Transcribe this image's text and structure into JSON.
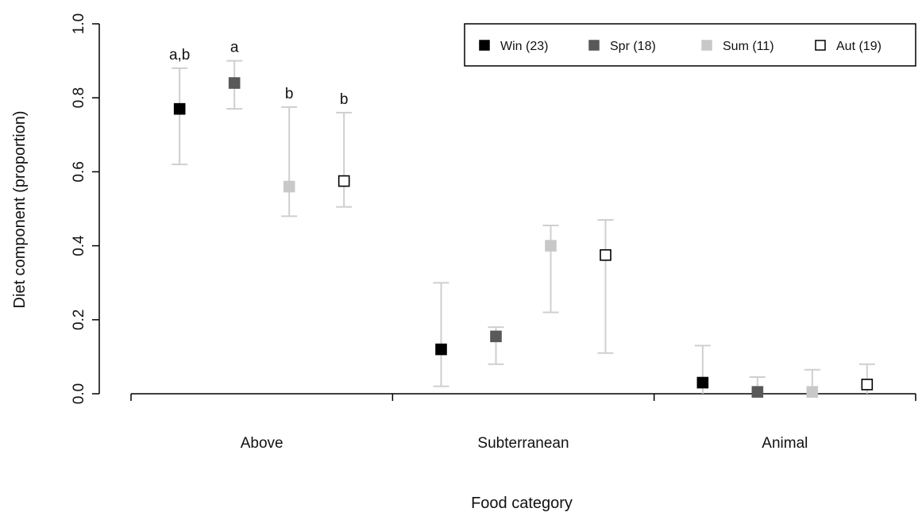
{
  "chart_data": {
    "type": "scatter",
    "title": "",
    "xlabel": "Food category",
    "ylabel": "Diet component (proportion)",
    "ylim": [
      0,
      1
    ],
    "yticks": [
      "0.0",
      "0.2",
      "0.4",
      "0.6",
      "0.8",
      "1.0"
    ],
    "categories": [
      "Above",
      "Subterranean",
      "Animal"
    ],
    "grid": false,
    "legend_position": "top-right",
    "series": [
      {
        "name": "Win (23)",
        "marker_fill": "#000000",
        "marker_stroke": "#000000",
        "values": [
          0.77,
          0.12,
          0.03
        ],
        "lower": [
          0.62,
          0.02,
          0.0
        ],
        "upper": [
          0.88,
          0.3,
          0.13
        ]
      },
      {
        "name": "Spr (18)",
        "marker_fill": "#595959",
        "marker_stroke": "#595959",
        "values": [
          0.84,
          0.155,
          0.005
        ],
        "lower": [
          0.77,
          0.08,
          0.0
        ],
        "upper": [
          0.9,
          0.18,
          0.045
        ]
      },
      {
        "name": "Sum (11)",
        "marker_fill": "#c8c8c8",
        "marker_stroke": "#c8c8c8",
        "values": [
          0.56,
          0.4,
          0.005
        ],
        "lower": [
          0.48,
          0.22,
          0.0
        ],
        "upper": [
          0.775,
          0.455,
          0.065
        ]
      },
      {
        "name": "Aut (19)",
        "marker_fill": "#ffffff",
        "marker_stroke": "#000000",
        "values": [
          0.575,
          0.375,
          0.025
        ],
        "lower": [
          0.505,
          0.11,
          0.0
        ],
        "upper": [
          0.76,
          0.47,
          0.08
        ]
      }
    ],
    "annotations": [
      {
        "category": "Above",
        "series": "Win (23)",
        "text": "a,b"
      },
      {
        "category": "Above",
        "series": "Spr (18)",
        "text": "a"
      },
      {
        "category": "Above",
        "series": "Sum (11)",
        "text": "b"
      },
      {
        "category": "Above",
        "series": "Aut (19)",
        "text": "b"
      }
    ],
    "errorbar_color": "#cfcfcf"
  }
}
